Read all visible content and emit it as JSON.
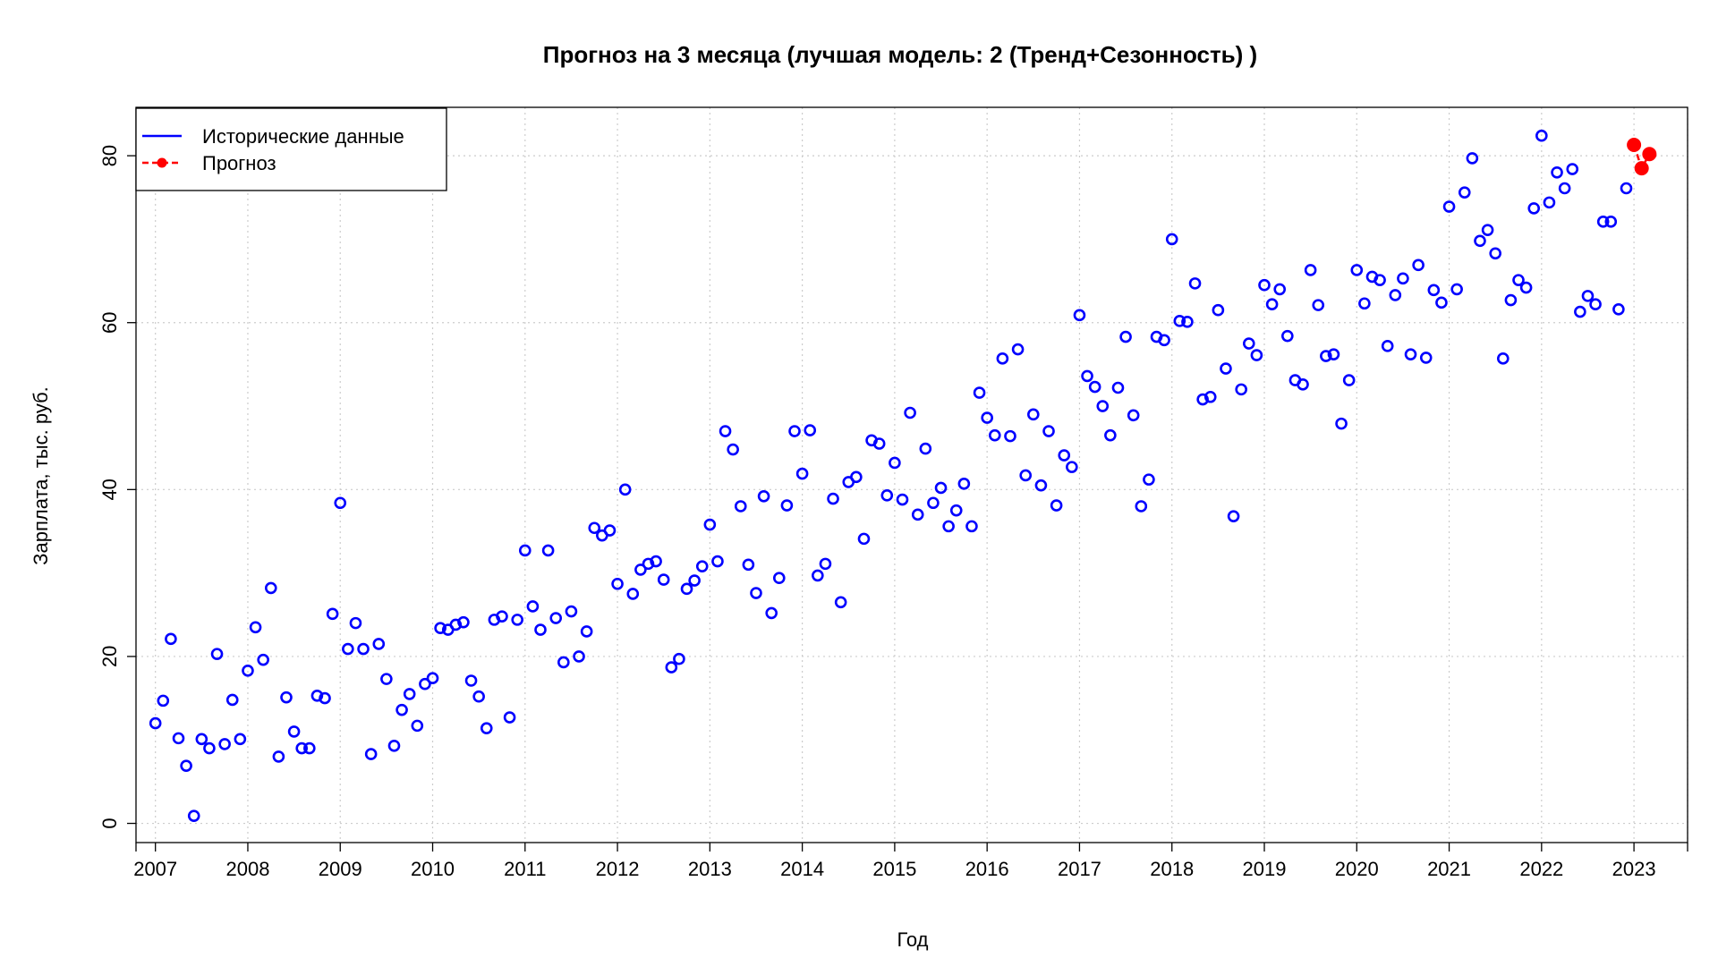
{
  "chart_data": {
    "type": "scatter",
    "title": "Прогноз на 3 месяца (лучшая модель: 2 (Тренд+Сезонность) )",
    "xlabel": "Год",
    "ylabel": "Зарплата, тыс. руб.",
    "xlim": [
      2006.79,
      2023.58
    ],
    "ylim": [
      -2.3,
      85.8
    ],
    "x_ticks": [
      2007,
      2008,
      2009,
      2010,
      2011,
      2012,
      2013,
      2014,
      2015,
      2016,
      2017,
      2018,
      2019,
      2020,
      2021,
      2022,
      2023
    ],
    "x_tick_labels": [
      "2007",
      "2008",
      "2009",
      "2010",
      "2011",
      "2012",
      "2013",
      "2014",
      "2015",
      "2016",
      "2017",
      "2018",
      "2019",
      "2020",
      "2021",
      "2022",
      "2023"
    ],
    "y_ticks": [
      0,
      20,
      40,
      60,
      80
    ],
    "y_tick_labels": [
      "0",
      "20",
      "40",
      "60",
      "80"
    ],
    "grid": true,
    "legend": {
      "position": "top-left",
      "entries": [
        {
          "label": "Исторические данные",
          "color": "#0000ff",
          "style": "solid-line"
        },
        {
          "label": "Прогноз",
          "color": "#ff0000",
          "style": "dashed-line-dot"
        }
      ]
    },
    "series": [
      {
        "name": "Исторические данные",
        "color": "#0000ff",
        "marker": "open-circle",
        "start": 2007,
        "step_per_year": 12,
        "values": [
          12.0,
          14.7,
          22.1,
          10.2,
          6.9,
          0.9,
          10.1,
          9.0,
          20.3,
          9.5,
          14.8,
          10.1,
          18.3,
          23.5,
          19.6,
          28.2,
          8.0,
          15.1,
          11.0,
          9.0,
          9.0,
          15.3,
          15.0,
          25.1,
          38.4,
          20.9,
          24.0,
          20.9,
          8.3,
          21.5,
          17.3,
          9.3,
          13.6,
          15.5,
          11.7,
          16.7,
          17.4,
          23.4,
          23.2,
          23.8,
          24.1,
          17.1,
          15.2,
          11.4,
          24.4,
          24.8,
          12.7,
          24.4,
          32.7,
          26.0,
          23.2,
          32.7,
          24.6,
          19.3,
          25.4,
          20.0,
          23.0,
          35.4,
          34.5,
          35.1,
          28.7,
          40.0,
          27.5,
          30.4,
          31.1,
          31.4,
          29.2,
          18.7,
          19.7,
          28.1,
          29.1,
          30.8,
          35.8,
          31.4,
          47.0,
          44.8,
          38.0,
          31.0,
          27.6,
          39.2,
          25.2,
          29.4,
          38.1,
          47.0,
          41.9,
          47.1,
          29.7,
          31.1,
          38.9,
          26.5,
          40.9,
          41.5,
          34.1,
          45.9,
          45.5,
          39.3,
          43.2,
          38.8,
          49.2,
          37.0,
          44.9,
          38.4,
          40.2,
          35.6,
          37.5,
          40.7,
          35.6,
          51.6,
          48.6,
          46.5,
          55.7,
          46.4,
          56.8,
          41.7,
          49.0,
          40.5,
          47.0,
          38.1,
          44.1,
          42.7,
          60.9,
          53.6,
          52.3,
          50.0,
          46.5,
          52.2,
          58.3,
          48.9,
          38.0,
          41.2,
          58.3,
          57.9,
          70.0,
          60.2,
          60.1,
          64.7,
          50.8,
          51.1,
          61.5,
          54.5,
          36.8,
          52.0,
          57.5,
          56.1,
          64.5,
          62.2,
          64.0,
          58.4,
          53.1,
          52.6,
          66.3,
          62.1,
          56.0,
          56.2,
          47.9,
          53.1,
          66.3,
          62.3,
          65.5,
          65.1,
          57.2,
          63.3,
          65.3,
          56.2,
          66.9,
          55.8,
          63.9,
          62.4,
          73.9,
          64.0,
          75.6,
          79.7,
          69.8,
          71.1,
          68.3,
          55.7,
          62.7,
          65.1,
          64.2,
          73.7,
          82.4,
          74.4,
          78.0,
          76.1,
          78.4,
          61.3,
          63.2,
          62.2,
          72.1,
          72.1,
          61.6,
          76.1
        ]
      },
      {
        "name": "Прогноз",
        "color": "#ff0000",
        "marker": "filled-circle",
        "x": [
          2023.0,
          2023.083,
          2023.167
        ],
        "values": [
          81.3,
          78.5,
          80.2
        ]
      }
    ]
  }
}
